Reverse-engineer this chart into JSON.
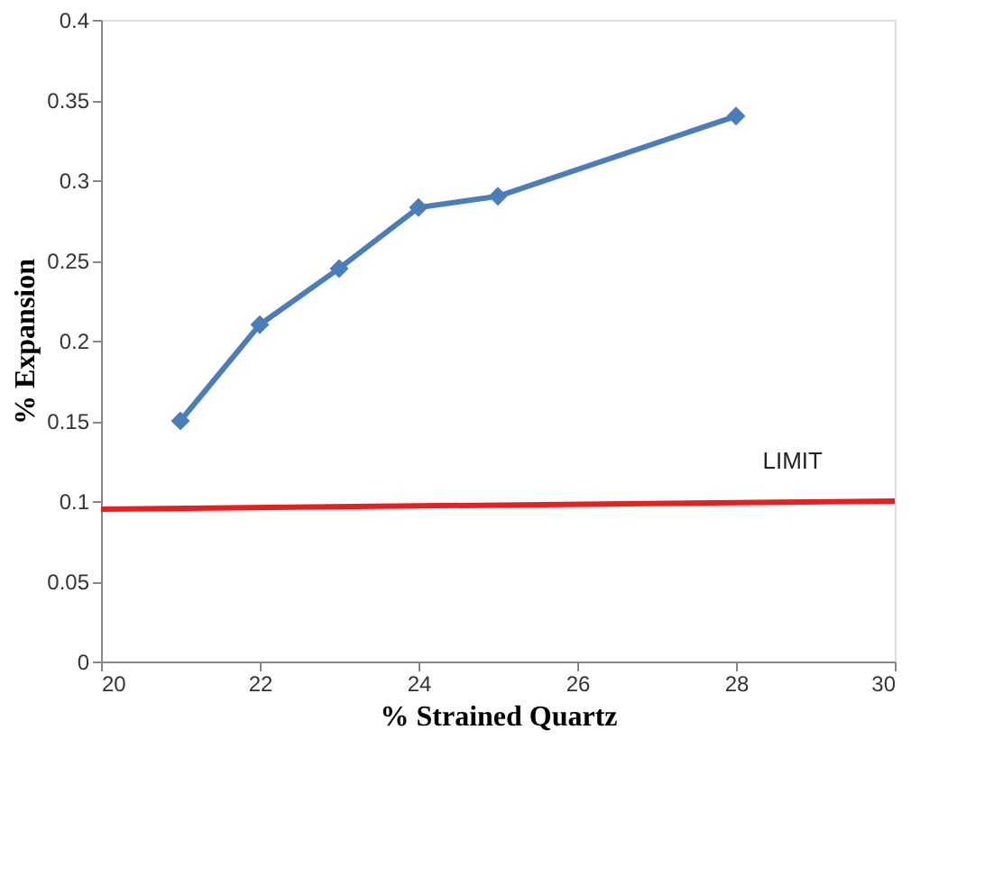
{
  "chart_data": {
    "type": "line",
    "xlabel": "% Strained Quartz",
    "ylabel": "% Expansion",
    "xlim": [
      20,
      30
    ],
    "xticks": [
      20,
      22,
      24,
      26,
      28,
      30
    ],
    "ylim": [
      0,
      0.4
    ],
    "yticks": [
      0,
      0.05,
      0.1,
      0.15,
      0.2,
      0.25,
      0.3,
      0.35,
      0.4
    ],
    "grid": false,
    "marker": "diamond",
    "line_style": "solid",
    "series": [
      {
        "color": "#4a7ebb",
        "x": [
          21,
          22,
          23,
          24,
          25,
          28
        ],
        "values": [
          0.15,
          0.21,
          0.245,
          0.283,
          0.29,
          0.34
        ]
      },
      {
        "name": "LIMIT",
        "color": "#ee1c1c",
        "marker": "none",
        "x": [
          20,
          30
        ],
        "values": [
          0.095,
          0.1
        ]
      }
    ]
  }
}
